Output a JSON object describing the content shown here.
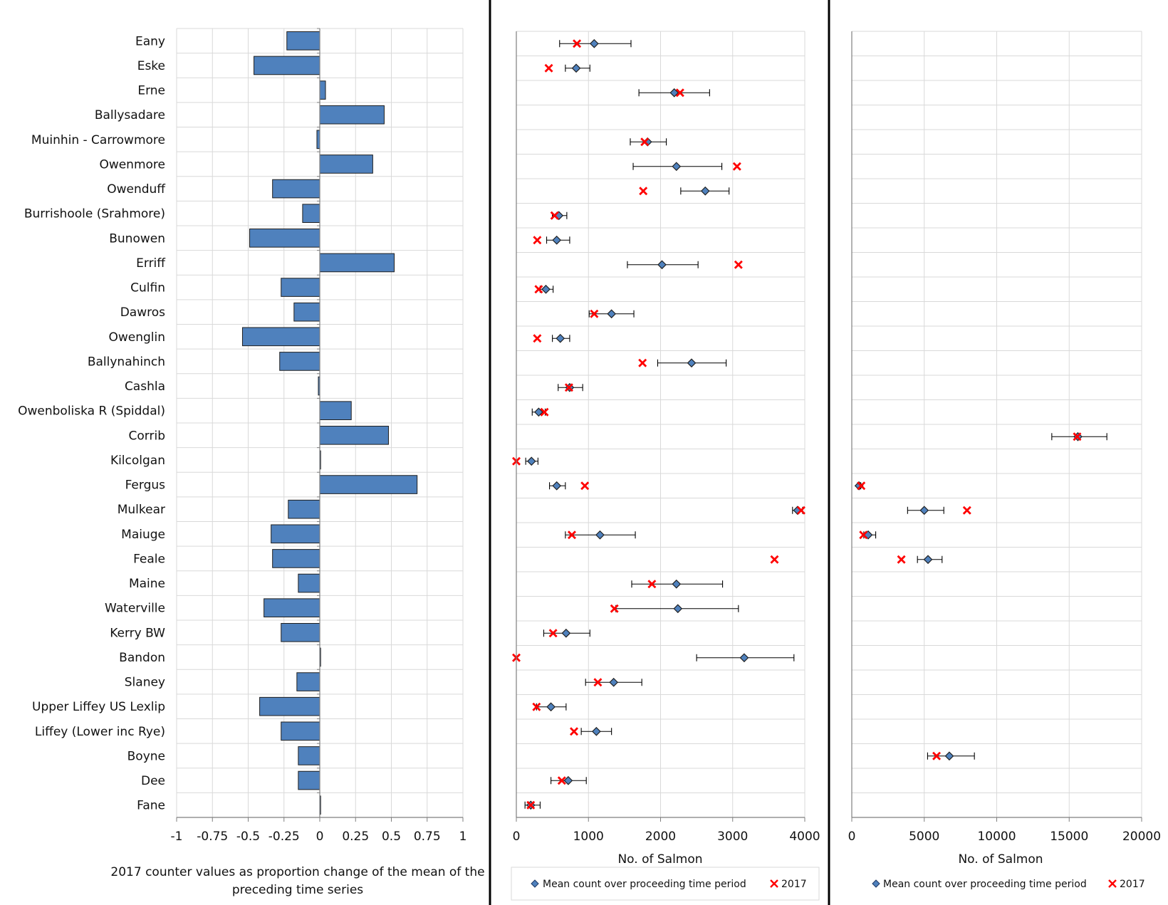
{
  "rivers": [
    "Eany",
    "Eske",
    "Erne",
    "Ballysadare",
    "Muinhin - Carrowmore",
    "Owenmore",
    "Owenduff",
    "Burrishoole (Srahmore)",
    "Bunowen",
    "Erriff",
    "Culfin",
    "Dawros",
    "Owenglin",
    "Ballynahinch",
    "Cashla",
    "Owenboliska R (Spiddal)",
    "Corrib",
    "Kilcolgan",
    "Fergus",
    "Mulkear",
    "Maiuge",
    "Feale",
    "Maine",
    "Waterville",
    "Kerry BW",
    "Bandon",
    "Slaney",
    "Upper Liffey US Lexlip",
    "Liffey (Lower inc Rye)",
    "Boyne",
    "Dee",
    "Fane"
  ],
  "colors": {
    "bar": "#4f81bd",
    "bar_edge": "#1f1f1f",
    "marker": "#4f81bd",
    "cross": "#ff0000",
    "grid": "#d9d9d9",
    "divider": "#000000"
  },
  "chart_data": [
    {
      "type": "bar",
      "orientation": "horizontal",
      "categories_ref": "rivers",
      "values": [
        -0.23,
        -0.46,
        0.04,
        0.45,
        -0.02,
        0.37,
        -0.33,
        -0.12,
        -0.49,
        0.52,
        -0.27,
        -0.18,
        -0.54,
        -0.28,
        -0.01,
        0.22,
        0.48,
        0.0,
        0.68,
        -0.22,
        -0.34,
        -0.33,
        -0.15,
        -0.39,
        -0.27,
        0.0,
        -0.16,
        -0.42,
        -0.27,
        -0.15,
        -0.15,
        0.005
      ],
      "xlim": [
        -1,
        1
      ],
      "xticks": [
        "-1",
        "-0.75",
        "-0.5",
        "-0.25",
        "0",
        "0.25",
        "0.5",
        "0.75",
        "1"
      ],
      "xlabel": [
        "2017 counter values as proportion change of the mean of the",
        "preceding time series"
      ],
      "grid": true
    },
    {
      "type": "scatter",
      "categories_ref": "rivers",
      "xlim": [
        0,
        4000
      ],
      "xticks": [
        "0",
        "1000",
        "2000",
        "3000",
        "4000"
      ],
      "xlabel": "No. of Salmon",
      "grid": true,
      "series": [
        {
          "name": "Mean count over proceeding time period",
          "points": [
            {
              "i": 0,
              "mean": 1080,
              "lo": 600,
              "hi": 1590
            },
            {
              "i": 1,
              "mean": 830,
              "lo": 680,
              "hi": 1020
            },
            {
              "i": 2,
              "mean": 2190,
              "lo": 1700,
              "hi": 2680
            },
            {
              "i": 4,
              "mean": 1820,
              "lo": 1580,
              "hi": 2080
            },
            {
              "i": 5,
              "mean": 2220,
              "lo": 1620,
              "hi": 2850
            },
            {
              "i": 6,
              "mean": 2620,
              "lo": 2280,
              "hi": 2950
            },
            {
              "i": 7,
              "mean": 590,
              "lo": 500,
              "hi": 700
            },
            {
              "i": 8,
              "mean": 560,
              "lo": 420,
              "hi": 740
            },
            {
              "i": 9,
              "mean": 2020,
              "lo": 1540,
              "hi": 2520
            },
            {
              "i": 10,
              "mean": 410,
              "lo": 330,
              "hi": 510
            },
            {
              "i": 11,
              "mean": 1320,
              "lo": 1010,
              "hi": 1630
            },
            {
              "i": 12,
              "mean": 610,
              "lo": 500,
              "hi": 740
            },
            {
              "i": 13,
              "mean": 2430,
              "lo": 1960,
              "hi": 2910
            },
            {
              "i": 14,
              "mean": 740,
              "lo": 580,
              "hi": 920
            },
            {
              "i": 15,
              "mean": 310,
              "lo": 220,
              "hi": 400
            },
            {
              "i": 17,
              "mean": 210,
              "lo": 130,
              "hi": 300
            },
            {
              "i": 18,
              "mean": 560,
              "lo": 460,
              "hi": 680
            },
            {
              "i": 19,
              "mean": 3900,
              "lo": 3830,
              "hi": 3970
            },
            {
              "i": 20,
              "mean": 1160,
              "lo": 680,
              "hi": 1650
            },
            {
              "i": 22,
              "mean": 2220,
              "lo": 1600,
              "hi": 2860
            },
            {
              "i": 23,
              "mean": 2240,
              "lo": 1380,
              "hi": 3080
            },
            {
              "i": 24,
              "mean": 690,
              "lo": 380,
              "hi": 1020
            },
            {
              "i": 25,
              "mean": 3160,
              "lo": 2500,
              "hi": 3850
            },
            {
              "i": 26,
              "mean": 1350,
              "lo": 960,
              "hi": 1740
            },
            {
              "i": 27,
              "mean": 480,
              "lo": 280,
              "hi": 690
            },
            {
              "i": 28,
              "mean": 1110,
              "lo": 900,
              "hi": 1320
            },
            {
              "i": 30,
              "mean": 720,
              "lo": 480,
              "hi": 970
            },
            {
              "i": 31,
              "mean": 200,
              "lo": 120,
              "hi": 330
            }
          ]
        },
        {
          "name": "2017",
          "points": [
            {
              "i": 0,
              "value": 840
            },
            {
              "i": 1,
              "value": 450
            },
            {
              "i": 2,
              "value": 2270
            },
            {
              "i": 4,
              "value": 1780
            },
            {
              "i": 5,
              "value": 3060
            },
            {
              "i": 6,
              "value": 1760
            },
            {
              "i": 7,
              "value": 530
            },
            {
              "i": 8,
              "value": 290
            },
            {
              "i": 9,
              "value": 3080
            },
            {
              "i": 10,
              "value": 310
            },
            {
              "i": 11,
              "value": 1080
            },
            {
              "i": 12,
              "value": 290
            },
            {
              "i": 13,
              "value": 1750
            },
            {
              "i": 14,
              "value": 730
            },
            {
              "i": 15,
              "value": 390
            },
            {
              "i": 17,
              "value": 0
            },
            {
              "i": 18,
              "value": 950
            },
            {
              "i": 19,
              "value": 3950
            },
            {
              "i": 20,
              "value": 770
            },
            {
              "i": 21,
              "value": 3580
            },
            {
              "i": 22,
              "value": 1880
            },
            {
              "i": 23,
              "value": 1360
            },
            {
              "i": 24,
              "value": 510
            },
            {
              "i": 25,
              "value": 0
            },
            {
              "i": 26,
              "value": 1130
            },
            {
              "i": 27,
              "value": 280
            },
            {
              "i": 28,
              "value": 800
            },
            {
              "i": 30,
              "value": 630
            },
            {
              "i": 31,
              "value": 200
            }
          ]
        }
      ],
      "legend": [
        "Mean count over proceeding time period",
        "2017"
      ]
    },
    {
      "type": "scatter",
      "categories_ref": "rivers",
      "xlim": [
        0,
        20000
      ],
      "xticks": [
        "0",
        "5000",
        "10000",
        "15000",
        "20000"
      ],
      "xlabel": "No. of Salmon",
      "grid": true,
      "series": [
        {
          "name": "Mean count over proceeding time period",
          "points": [
            {
              "i": 16,
              "mean": 15600,
              "lo": 13800,
              "hi": 17600
            },
            {
              "i": 18,
              "mean": 500,
              "lo": 400,
              "hi": 620
            },
            {
              "i": 19,
              "mean": 5000,
              "lo": 3850,
              "hi": 6350
            },
            {
              "i": 20,
              "mean": 1130,
              "lo": 830,
              "hi": 1650
            },
            {
              "i": 21,
              "mean": 5260,
              "lo": 4530,
              "hi": 6230
            },
            {
              "i": 29,
              "mean": 6730,
              "lo": 5230,
              "hi": 8460
            }
          ]
        },
        {
          "name": "2017",
          "points": [
            {
              "i": 16,
              "value": 15550
            },
            {
              "i": 18,
              "value": 650
            },
            {
              "i": 19,
              "value": 7950
            },
            {
              "i": 20,
              "value": 800
            },
            {
              "i": 21,
              "value": 3420
            },
            {
              "i": 29,
              "value": 5850
            }
          ]
        }
      ],
      "legend": [
        "Mean count over proceeding time period",
        "2017"
      ]
    }
  ]
}
